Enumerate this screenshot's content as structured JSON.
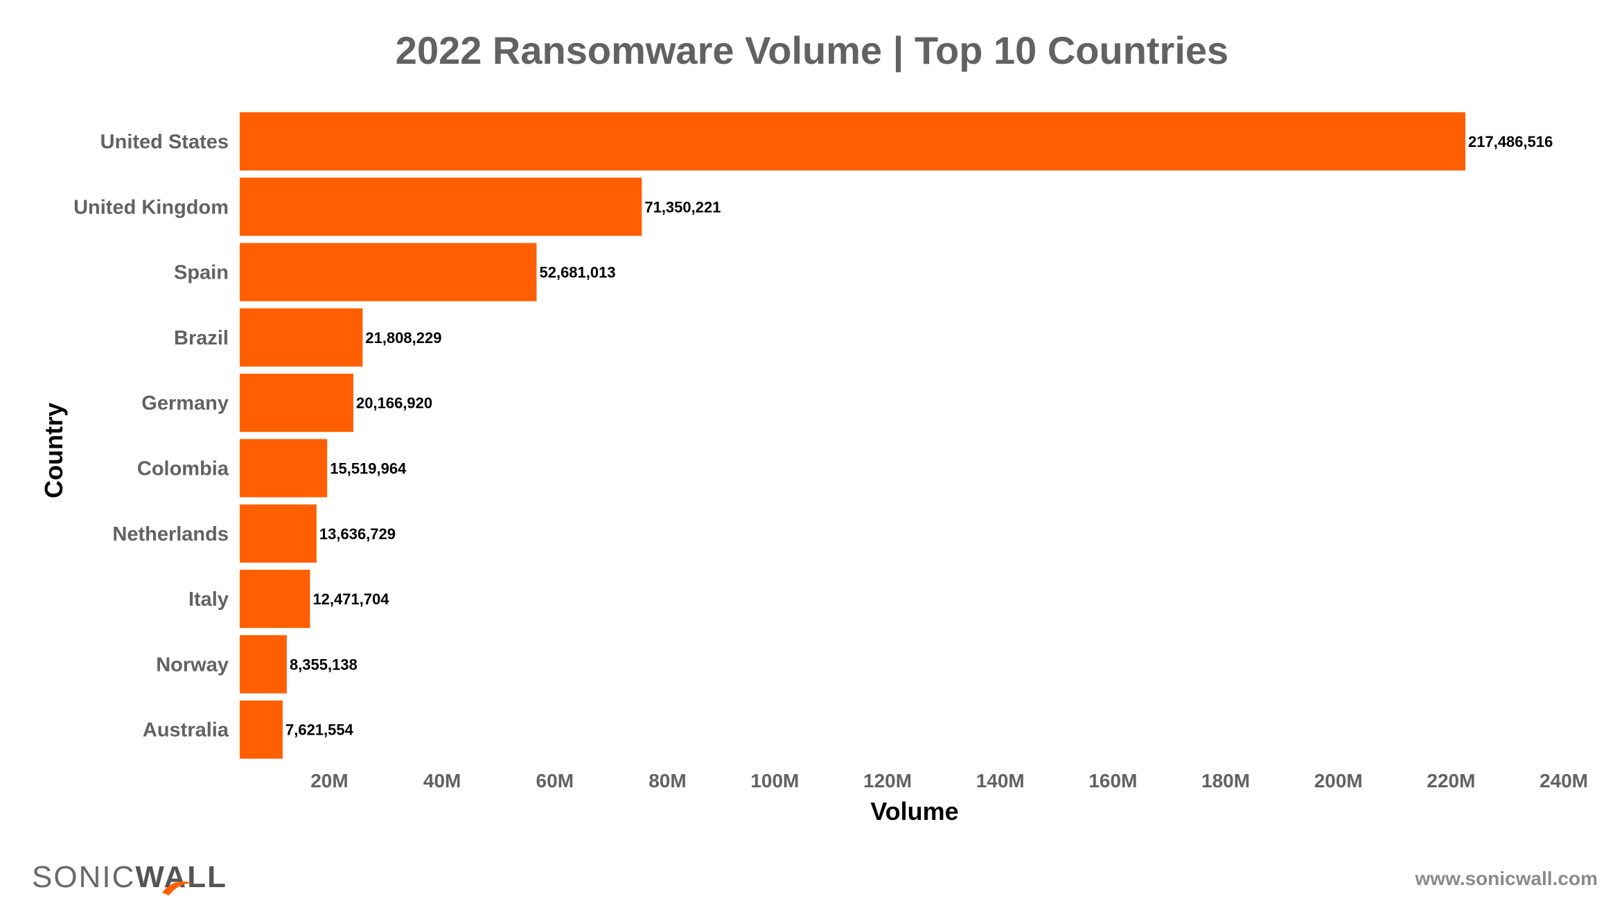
{
  "chart_data": {
    "type": "bar",
    "orientation": "horizontal",
    "title": "2022 Ransomware Volume | Top 10 Countries",
    "xlabel": "Volume",
    "ylabel": "Country",
    "categories": [
      "United States",
      "United Kingdom",
      "Spain",
      "Brazil",
      "Germany",
      "Colombia",
      "Netherlands",
      "Italy",
      "Norway",
      "Australia"
    ],
    "values": [
      217486516,
      71350221,
      52681013,
      21808229,
      20166920,
      15519964,
      13636729,
      12471704,
      8355138,
      7621554
    ],
    "value_labels": [
      "217,486,516",
      "71,350,221",
      "52,681,013",
      "21,808,229",
      "20,166,920",
      "15,519,964",
      "13,636,729",
      "12,471,704",
      "8,355,138",
      "7,621,554"
    ],
    "xticks": [
      "20M",
      "40M",
      "60M",
      "80M",
      "100M",
      "120M",
      "140M",
      "160M",
      "180M",
      "200M",
      "220M",
      "240M"
    ],
    "xtick_values": [
      20000000,
      40000000,
      60000000,
      80000000,
      100000000,
      120000000,
      140000000,
      160000000,
      180000000,
      200000000,
      220000000,
      240000000
    ],
    "xlim": [
      0,
      240000000
    ],
    "grid": false,
    "bar_color": "#FF5F00"
  },
  "footer": {
    "logo": "SONICWALL",
    "url": "www.sonicwall.com"
  }
}
